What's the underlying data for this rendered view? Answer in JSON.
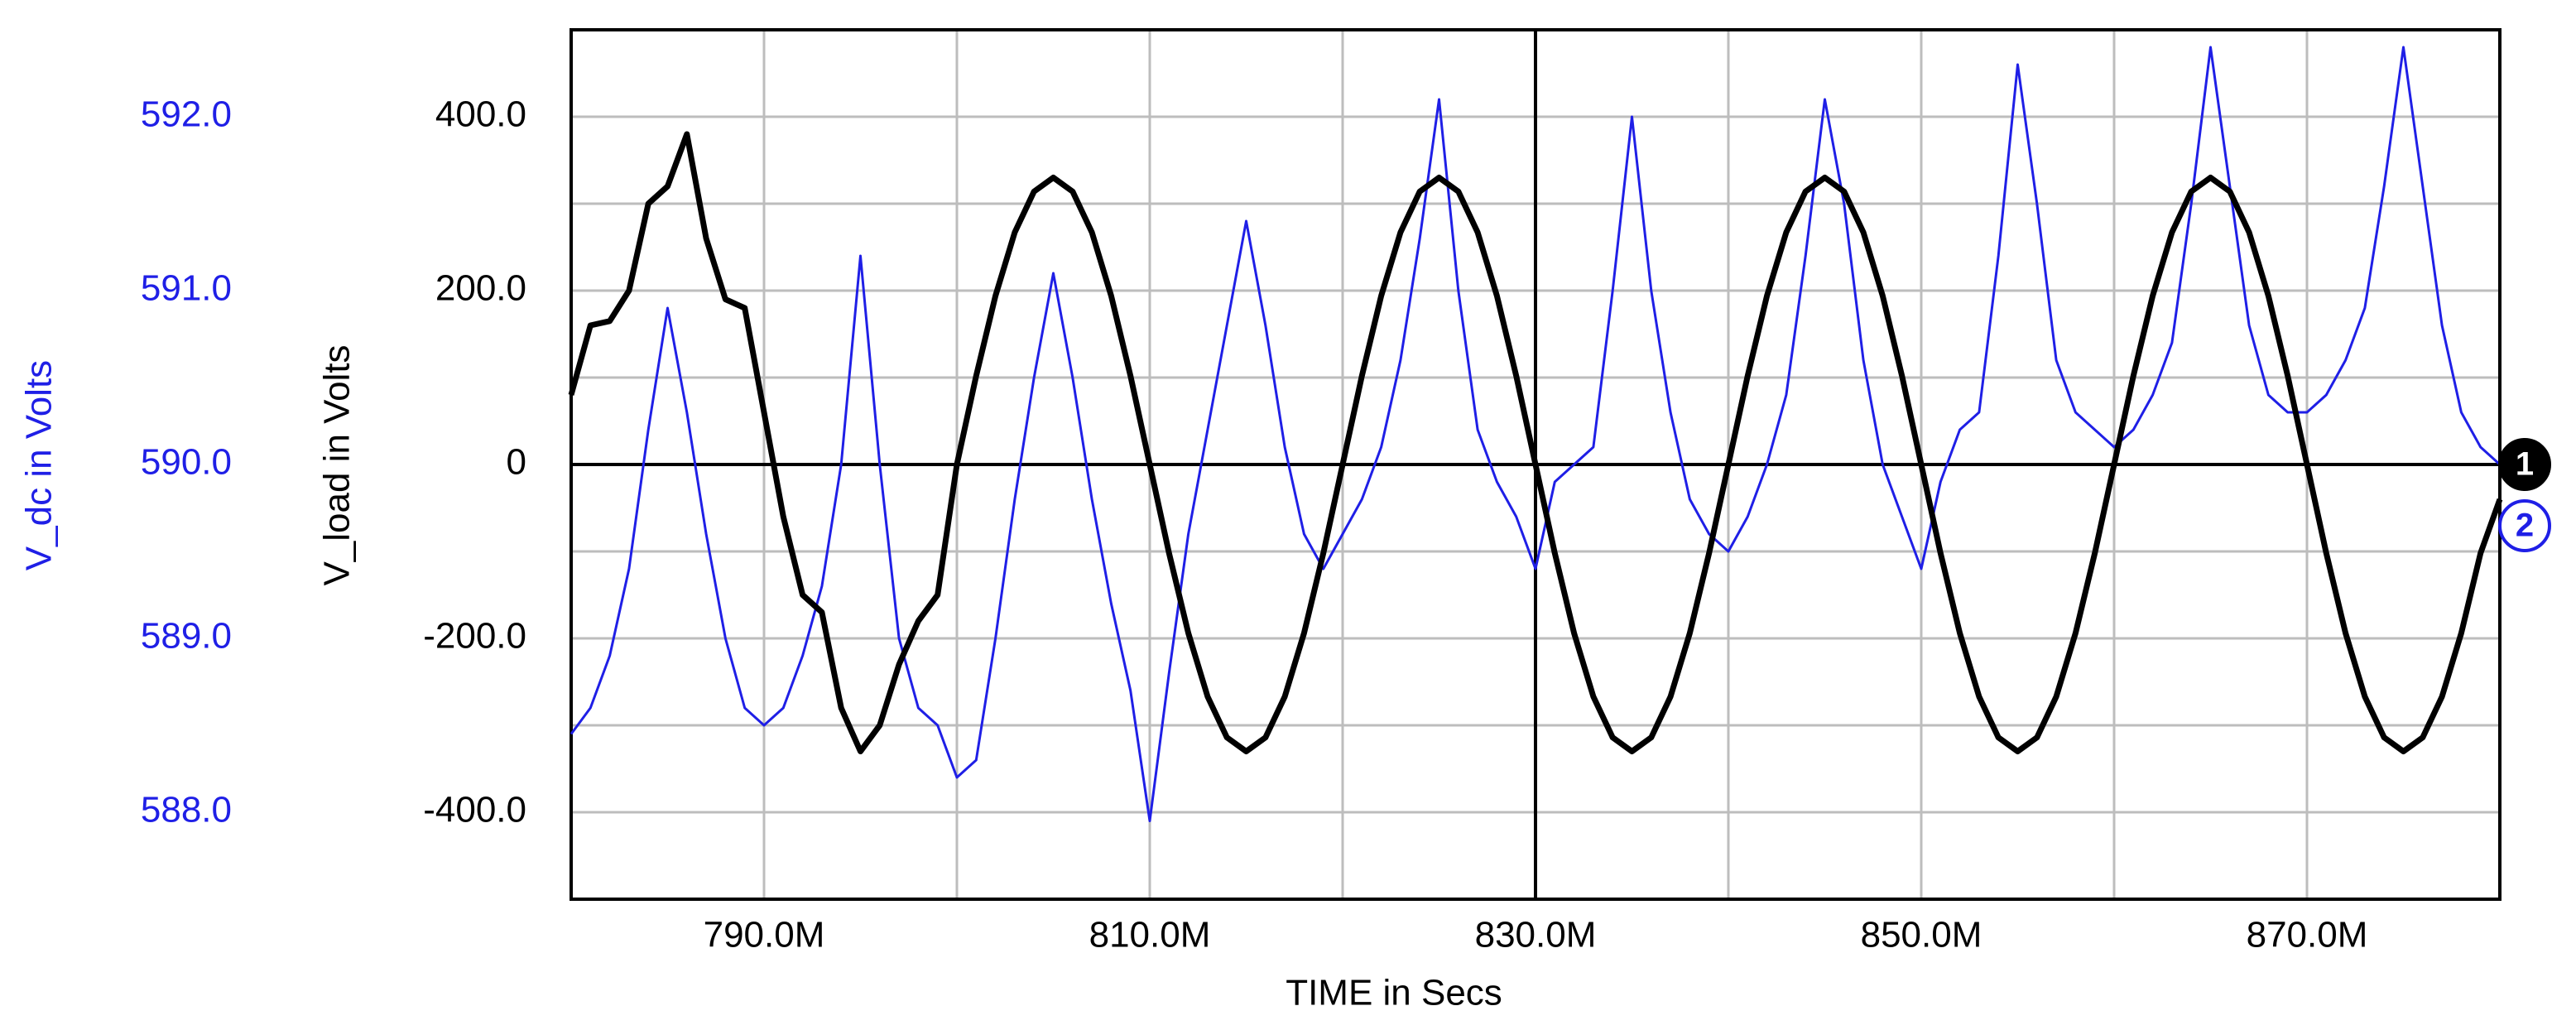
{
  "chart_data": {
    "type": "line",
    "xlabel": "TIME in Secs",
    "ylabel": "V_load in Volts",
    "y2label": "V_dc in Volts",
    "xlim": [
      780,
      880
    ],
    "ylim": [
      -500,
      500
    ],
    "y2lim": [
      587.5,
      592.5
    ],
    "xticks": [
      {
        "value": 790,
        "label": "790.0M"
      },
      {
        "value": 810,
        "label": "810.0M"
      },
      {
        "value": 830,
        "label": "830.0M"
      },
      {
        "value": 850,
        "label": "850.0M"
      },
      {
        "value": 870,
        "label": "870.0M"
      }
    ],
    "xminorticks": [
      800,
      820,
      840,
      860
    ],
    "yticks": [
      {
        "value": 400,
        "label": "400.0"
      },
      {
        "value": 200,
        "label": "200.0"
      },
      0,
      {
        "value": -200,
        "label": "-200.0"
      },
      {
        "value": -400,
        "label": "-400.0"
      }
    ],
    "yminorticks": [
      300,
      100,
      -100,
      -300
    ],
    "y2ticks": [
      {
        "value": 592,
        "label": "592.0"
      },
      {
        "value": 591,
        "label": "591.0"
      },
      {
        "value": 590,
        "label": "590.0"
      },
      {
        "value": 589,
        "label": "589.0"
      },
      {
        "value": 588,
        "label": "588.0"
      }
    ],
    "cursor": 830,
    "grid": true,
    "grid_color": "#bdbdbd",
    "x": [
      780,
      781,
      782,
      783,
      784,
      785,
      786,
      787,
      788,
      789,
      790,
      791,
      792,
      793,
      794,
      795,
      796,
      797,
      798,
      799,
      800,
      801,
      802,
      803,
      804,
      805,
      806,
      807,
      808,
      809,
      810,
      811,
      812,
      813,
      814,
      815,
      816,
      817,
      818,
      819,
      820,
      821,
      822,
      823,
      824,
      825,
      826,
      827,
      828,
      829,
      830,
      831,
      832,
      833,
      834,
      835,
      836,
      837,
      838,
      839,
      840,
      841,
      842,
      843,
      844,
      845,
      846,
      847,
      848,
      849,
      850,
      851,
      852,
      853,
      854,
      855,
      856,
      857,
      858,
      859,
      860,
      861,
      862,
      863,
      864,
      865,
      866,
      867,
      868,
      869,
      870,
      871,
      872,
      873,
      874,
      875,
      876,
      877,
      878,
      879,
      880
    ],
    "series": [
      {
        "name": "1",
        "color": "#000000",
        "values": [
          80,
          160,
          165,
          200,
          300,
          320,
          380,
          260,
          190,
          180,
          60,
          -60,
          -150,
          -170,
          -280,
          -330,
          -300,
          -230,
          -180,
          -150,
          0,
          102,
          194,
          267,
          314,
          330,
          314,
          267,
          194,
          102,
          0,
          -102,
          -194,
          -267,
          -314,
          -330,
          -314,
          -267,
          -194,
          -102,
          0,
          102,
          194,
          267,
          314,
          330,
          314,
          267,
          194,
          102,
          0,
          -102,
          -194,
          -267,
          -314,
          -330,
          -314,
          -267,
          -194,
          -102,
          0,
          102,
          194,
          267,
          314,
          330,
          314,
          267,
          194,
          102,
          0,
          -102,
          -194,
          -267,
          -314,
          -330,
          -314,
          -267,
          -194,
          -102,
          0,
          102,
          194,
          267,
          314,
          330,
          314,
          267,
          194,
          102,
          0,
          -102,
          -194,
          -267,
          -314,
          -330,
          -314,
          -267,
          -194,
          -102,
          -40
        ]
      },
      {
        "name": "2",
        "color": "#1f1fe6",
        "axis": "y2",
        "values": [
          588.45,
          588.6,
          588.9,
          589.4,
          590.2,
          590.9,
          590.3,
          589.6,
          589.0,
          588.6,
          588.5,
          588.6,
          588.9,
          589.3,
          590.0,
          591.2,
          590.0,
          589.0,
          588.6,
          588.5,
          588.2,
          588.3,
          589.0,
          589.8,
          590.5,
          591.1,
          590.5,
          589.8,
          589.2,
          588.7,
          587.95,
          588.8,
          589.6,
          590.2,
          590.8,
          591.4,
          590.8,
          590.1,
          589.6,
          589.4,
          589.6,
          589.8,
          590.1,
          590.6,
          591.3,
          592.1,
          591.0,
          590.2,
          589.9,
          589.7,
          589.4,
          589.9,
          590.0,
          590.1,
          591.0,
          592.0,
          591.0,
          590.3,
          589.8,
          589.6,
          589.5,
          589.7,
          590.0,
          590.4,
          591.2,
          592.1,
          591.5,
          590.6,
          590.0,
          589.7,
          589.4,
          589.9,
          590.2,
          590.3,
          591.2,
          592.3,
          591.5,
          590.6,
          590.3,
          590.2,
          590.1,
          590.2,
          590.4,
          590.7,
          591.5,
          592.4,
          591.6,
          590.8,
          590.4,
          590.3,
          590.3,
          590.4,
          590.6,
          590.9,
          591.6,
          592.4,
          591.6,
          590.8,
          590.3,
          590.1,
          590.0
        ]
      }
    ]
  }
}
